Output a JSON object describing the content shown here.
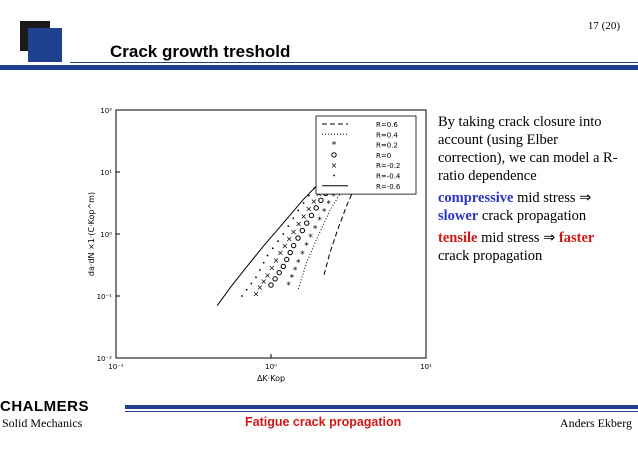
{
  "page_number": "17 (20)",
  "title": "Crack growth treshold",
  "body": {
    "intro": "By taking crack closure into account (using Elber correction), we can model a R-ratio dependence",
    "bullet1": {
      "em": "compressive",
      "after_em": " mid stress ⇒ ",
      "em2": "slower",
      "tail": " crack propagation"
    },
    "bullet2": {
      "em": "tensile",
      "after_em": " mid stress ⇒ ",
      "em2": "faster",
      "tail": " crack propagation"
    }
  },
  "footer": {
    "org": "CHALMERS",
    "department": "Solid Mechanics",
    "center": "Fatigue crack propagation",
    "author": "Anders Ekberg"
  },
  "colors": {
    "accent": "#1f3f8f",
    "compressive": "#2b33c8",
    "tensile": "#d01818"
  },
  "chart_data": {
    "type": "scatter",
    "xlabel": "ΔK·Kop",
    "ylabel": "da·dN ×1·(C·Kop^m)",
    "x_scale": "log",
    "y_scale": "log",
    "xlim": [
      0.1,
      10
    ],
    "ylim": [
      0.01,
      100
    ],
    "x_ticks": [
      "10⁻¹",
      "10⁰",
      "10¹"
    ],
    "y_ticks": [
      "10⁻²",
      "10⁻¹",
      "10⁰",
      "10¹",
      "10²"
    ],
    "legend_position": "top-right",
    "series": [
      {
        "name": "R=0.6",
        "style": "dashed",
        "x": [
          2.2,
          2.4,
          2.7,
          3.1,
          3.6,
          4.2,
          5.0
        ],
        "y": [
          0.22,
          0.5,
          1.2,
          3.0,
          7.0,
          14,
          25
        ]
      },
      {
        "name": "R=0.4",
        "style": "dotted",
        "x": [
          1.5,
          1.7,
          2.0,
          2.4,
          3.0,
          3.8,
          4.8
        ],
        "y": [
          0.13,
          0.35,
          0.9,
          2.4,
          6.0,
          13,
          25
        ]
      },
      {
        "name": "R=0.2",
        "style": "asterisk",
        "x": [
          1.3,
          1.5,
          1.8,
          2.2,
          2.7,
          3.4,
          4.3
        ],
        "y": [
          0.15,
          0.35,
          0.9,
          2.3,
          5.5,
          12,
          24
        ]
      },
      {
        "name": "R=0",
        "style": "circle",
        "x": [
          1.0,
          1.2,
          1.4,
          1.7,
          2.1,
          2.6,
          3.2
        ],
        "y": [
          0.15,
          0.3,
          0.65,
          1.5,
          3.5,
          7.5,
          15
        ]
      },
      {
        "name": "R=-0.2",
        "style": "cross",
        "x": [
          0.8,
          0.95,
          1.15,
          1.4,
          1.75,
          2.2,
          2.8
        ],
        "y": [
          0.11,
          0.22,
          0.5,
          1.1,
          2.6,
          6.0,
          13
        ]
      },
      {
        "name": "R=-0.4",
        "style": "dot",
        "x": [
          0.65,
          0.8,
          0.95,
          1.2,
          1.5,
          1.9,
          2.5
        ],
        "y": [
          0.1,
          0.2,
          0.45,
          1.0,
          2.4,
          5.5,
          12
        ]
      },
      {
        "name": "R=-0.6",
        "style": "solid",
        "x": [
          0.45,
          0.55,
          0.7,
          0.9,
          1.2,
          1.6,
          2.2,
          3.0
        ],
        "y": [
          0.07,
          0.14,
          0.3,
          0.65,
          1.5,
          3.5,
          8.0,
          16
        ]
      }
    ]
  }
}
